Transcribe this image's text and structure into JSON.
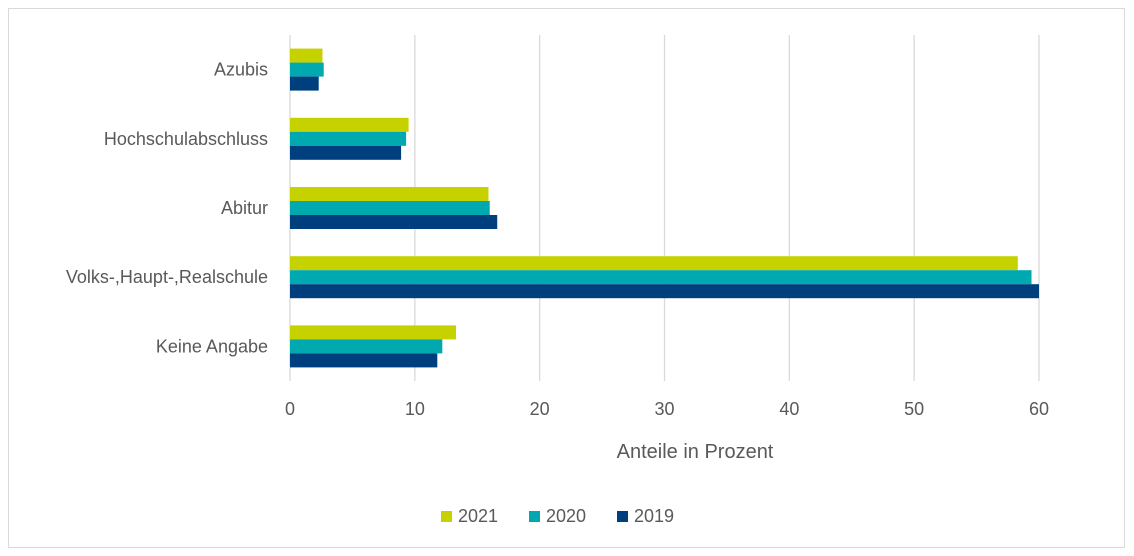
{
  "chart_data": {
    "type": "bar",
    "orientation": "horizontal",
    "categories": [
      "Azubis",
      "Hochschulabschluss",
      "Abitur",
      "Volks-,Haupt-,Realschule",
      "Keine Angabe"
    ],
    "series": [
      {
        "name": "2021",
        "color": "#c5d200",
        "values": [
          2.6,
          9.5,
          15.9,
          58.3,
          13.3
        ]
      },
      {
        "name": "2020",
        "color": "#00a8b0",
        "values": [
          2.7,
          9.3,
          16.0,
          59.4,
          12.2
        ]
      },
      {
        "name": "2019",
        "color": "#003f7d",
        "values": [
          2.3,
          8.9,
          16.6,
          60.0,
          11.8
        ]
      }
    ],
    "xlabel": "Anteile in Prozent",
    "ylabel": "",
    "title": "",
    "xlim": [
      0,
      60
    ],
    "xticks": [
      0,
      10,
      20,
      30,
      40,
      50,
      60
    ],
    "grid": "vertical",
    "legend": "bottom-center",
    "legend_order": [
      "2021",
      "2020",
      "2019"
    ]
  }
}
